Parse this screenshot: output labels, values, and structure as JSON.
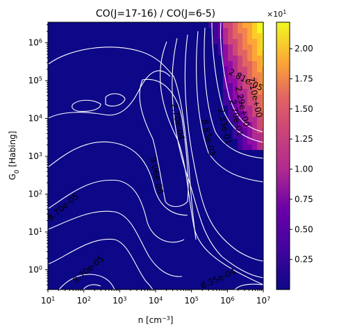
{
  "chart_data": {
    "type": "heatmap",
    "title": "CO(J=17-16) / CO(J=6-5)",
    "xlabel": "n [cm$^{-3}$]",
    "ylabel": "G$_0$ [Habing]",
    "x_scale": "log",
    "y_scale": "log",
    "xlim": [
      10,
      10000000
    ],
    "ylim": [
      0.3,
      3500000
    ],
    "x_ticks": [
      {
        "value": 10,
        "base": "10",
        "exp": "1"
      },
      {
        "value": 100,
        "base": "10",
        "exp": "2"
      },
      {
        "value": 1000,
        "base": "10",
        "exp": "3"
      },
      {
        "value": 10000,
        "base": "10",
        "exp": "4"
      },
      {
        "value": 100000,
        "base": "10",
        "exp": "5"
      },
      {
        "value": 1000000,
        "base": "10",
        "exp": "6"
      },
      {
        "value": 10000000,
        "base": "10",
        "exp": "7"
      }
    ],
    "y_ticks": [
      {
        "value": 1,
        "base": "10",
        "exp": "0"
      },
      {
        "value": 10,
        "base": "10",
        "exp": "1"
      },
      {
        "value": 100,
        "base": "10",
        "exp": "2"
      },
      {
        "value": 1000,
        "base": "10",
        "exp": "3"
      },
      {
        "value": 10000,
        "base": "10",
        "exp": "4"
      },
      {
        "value": 100000,
        "base": "10",
        "exp": "5"
      },
      {
        "value": 1000000,
        "base": "10",
        "exp": "6"
      }
    ],
    "colormap": "plasma",
    "colorbar": {
      "multiplier": "×10",
      "multiplier_exp": "1",
      "vmin": 0,
      "vmax": 2.22,
      "ticks": [
        "0.25",
        "0.50",
        "0.75",
        "1.00",
        "1.25",
        "1.50",
        "1.75",
        "2.00"
      ],
      "tick_values": [
        0.25,
        0.5,
        0.75,
        1.0,
        1.25,
        1.5,
        1.75,
        2.0
      ]
    },
    "contour_labels": [
      {
        "text": "2.81e-05",
        "x": 3000000,
        "y": 90000
      },
      {
        "text": "2.70e-04",
        "x": 35000,
        "y": 8000
      },
      {
        "text": "9.06e-06",
        "x": 9000,
        "y": 300
      },
      {
        "text": "8.70e-05",
        "x": 30,
        "y": 40
      },
      {
        "text": "8.70e-05",
        "x": 150,
        "y": 0.9
      },
      {
        "text": "8.35e-04",
        "x": 600000,
        "y": 0.5
      },
      {
        "text": "7.10e+00",
        "x": 5000000,
        "y": 35000
      },
      {
        "text": "2.29e+00",
        "x": 2200000,
        "y": 20000
      },
      {
        "text": "2.70e-01",
        "x": 1500000,
        "y": 10000
      },
      {
        "text": "2.33e-01",
        "x": 700000,
        "y": 6000
      },
      {
        "text": "8.83e-03",
        "x": 250000,
        "y": 3000
      }
    ]
  },
  "colors": {
    "background": "#0d0887",
    "contour": "#ffffff"
  }
}
